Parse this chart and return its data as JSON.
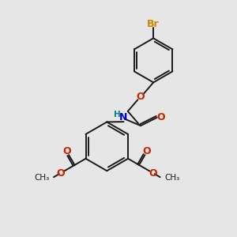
{
  "background_color": "#e6e6e6",
  "bond_color": "#1a1a1a",
  "br_color": "#cc8800",
  "o_color": "#cc2200",
  "n_color": "#0000cc",
  "h_color": "#008888",
  "figsize": [
    3.0,
    3.0
  ],
  "dpi": 100,
  "xlim": [
    0,
    10
  ],
  "ylim": [
    0,
    10
  ]
}
